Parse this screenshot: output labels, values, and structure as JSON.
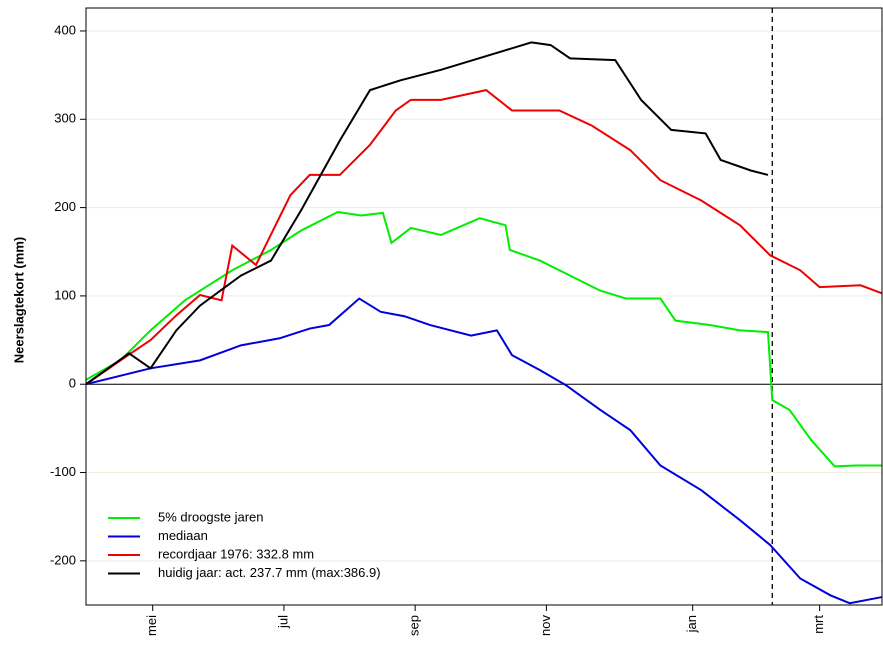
{
  "chart_data": {
    "type": "line",
    "ylabel": "Neerslagtekort (mm)",
    "xlim": [
      0,
      370
    ],
    "ylim": [
      -250,
      426
    ],
    "xticks": [
      {
        "value": 31,
        "label": "mei"
      },
      {
        "value": 92,
        "label": "jul"
      },
      {
        "value": 153,
        "label": "sep"
      },
      {
        "value": 214,
        "label": "nov"
      },
      {
        "value": 282,
        "label": "jan"
      },
      {
        "value": 341,
        "label": "mrt"
      }
    ],
    "yticks": [
      -200,
      -100,
      0,
      100,
      200,
      300,
      400
    ],
    "grid": true,
    "vline": 319,
    "legend": "lower left",
    "series": [
      {
        "name": "5% droogste jaren",
        "color": "#00ee00",
        "x": [
          0,
          16,
          30,
          46,
          68,
          86,
          100,
          117,
          128,
          138,
          142,
          151,
          165,
          183,
          195,
          197,
          211,
          220,
          239,
          251,
          267,
          274,
          290,
          304,
          317,
          319,
          327,
          337,
          348,
          358,
          370
        ],
        "values": [
          5,
          27,
          61,
          95,
          129,
          152,
          174,
          195,
          191,
          194,
          160,
          177,
          169,
          188,
          180,
          152,
          140,
          129,
          106,
          97,
          97,
          72,
          67,
          61,
          59,
          -18,
          -29,
          -63,
          -93,
          -92,
          -92
        ]
      },
      {
        "name": "mediaan",
        "color": "#0000dd",
        "x": [
          0,
          30,
          53,
          72,
          90,
          104,
          113,
          127,
          137,
          148,
          160,
          179,
          191,
          198,
          211,
          223,
          239,
          253,
          267,
          286,
          304,
          318,
          332,
          346,
          355,
          370
        ],
        "values": [
          0,
          18,
          27,
          44,
          52,
          63,
          67,
          97,
          82,
          77,
          67,
          55,
          61,
          33,
          16,
          -1,
          -29,
          -52,
          -92,
          -120,
          -154,
          -182,
          -220,
          -239,
          -248,
          -241
        ]
      },
      {
        "name": "recordjaar 1976: 332.8 mm",
        "color": "#ee0000",
        "x": [
          0,
          16,
          30,
          42,
          53,
          63,
          68,
          79,
          95,
          104,
          118,
          132,
          144,
          151,
          165,
          186,
          198,
          220,
          235,
          253,
          267,
          286,
          304,
          318,
          332,
          341,
          360,
          370
        ],
        "values": [
          0,
          27,
          50,
          78,
          101,
          95,
          157,
          135,
          214,
          237,
          237,
          271,
          310,
          322,
          322,
          333,
          310,
          310,
          293,
          265,
          231,
          208,
          180,
          146,
          129,
          110,
          112,
          103
        ]
      },
      {
        "name": "huidig jaar: act. 237.7 mm (max:386.9)",
        "color": "#000000",
        "x": [
          0,
          20,
          30,
          42,
          53,
          72,
          86,
          100,
          118,
          132,
          146,
          165,
          188,
          207,
          216,
          225,
          246,
          258,
          272,
          288,
          295,
          309,
          317
        ],
        "values": [
          0,
          35,
          18,
          61,
          89,
          123,
          140,
          197,
          276,
          333,
          344,
          356,
          373,
          387,
          384,
          369,
          367,
          322,
          288,
          284,
          254,
          242,
          237
        ]
      }
    ]
  }
}
